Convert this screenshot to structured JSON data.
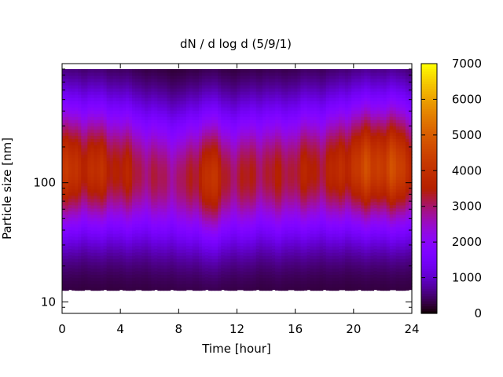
{
  "chart_data": {
    "type": "heatmap",
    "title": "dN / d log d (5/9/1)",
    "xlabel": "Time [hour]",
    "ylabel": "Particle size [nm]",
    "xlim": [
      0,
      24
    ],
    "ylim": [
      8,
      1000
    ],
    "y_scale": "log",
    "x_ticks": [
      0,
      4,
      8,
      12,
      16,
      20,
      24
    ],
    "x_tick_labels": [
      "0",
      "4",
      "8",
      "12",
      "16",
      "20",
      "24"
    ],
    "y_ticks": [
      10,
      100
    ],
    "y_tick_labels": [
      "10",
      "100"
    ],
    "colorbar": {
      "range": [
        0,
        7000
      ],
      "ticks": [
        0,
        1000,
        2000,
        3000,
        4000,
        5000,
        6000,
        7000
      ],
      "tick_labels": [
        "0",
        "1000",
        "2000",
        "3000",
        "4000",
        "5000",
        "6000",
        "7000"
      ],
      "colormap": "gnuplot-pm3d",
      "position": "right"
    },
    "size_range_nm": [
      12.5,
      900
    ],
    "size_mode": {
      "time_hour": [
        0,
        2,
        4,
        5,
        6,
        7,
        8,
        9,
        10,
        11,
        12,
        13,
        14,
        15,
        16,
        17,
        18,
        19,
        20,
        21,
        22,
        23,
        24
      ],
      "peak_size_nm": [
        130,
        130,
        125,
        120,
        115,
        110,
        105,
        110,
        110,
        110,
        110,
        115,
        120,
        115,
        120,
        125,
        125,
        130,
        135,
        135,
        135,
        135,
        130
      ],
      "peak_value": [
        4000,
        3900,
        3600,
        3300,
        3100,
        3000,
        3000,
        3200,
        4300,
        3400,
        3200,
        3300,
        3300,
        3300,
        3400,
        3500,
        3500,
        3700,
        4200,
        4400,
        4500,
        4400,
        4100
      ]
    }
  }
}
